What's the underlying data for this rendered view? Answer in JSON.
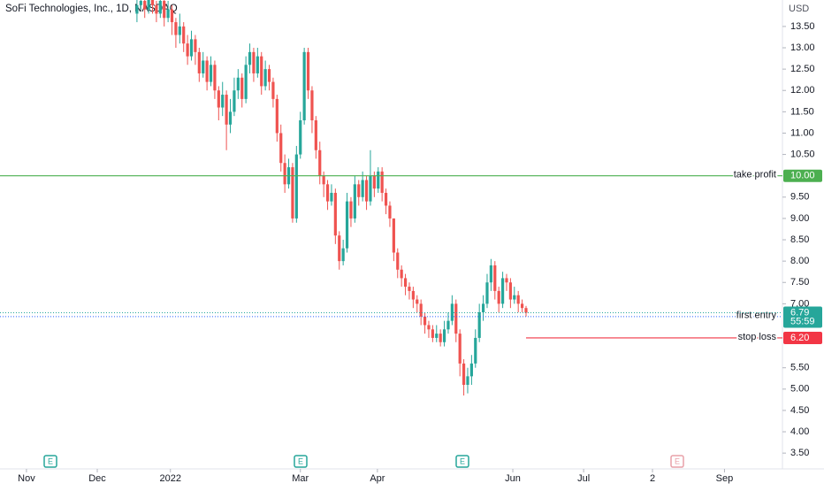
{
  "chart_data": {
    "type": "candlestick",
    "title": "SoFi Technologies, Inc., 1D, NASDAQ",
    "currency": "USD",
    "up_color": "#26a69a",
    "down_color": "#ef5350",
    "candles": [
      [
        13.8,
        14.2,
        13.6,
        14.0
      ],
      [
        14.0,
        14.3,
        13.9,
        14.1
      ],
      [
        14.1,
        14.2,
        13.7,
        13.9
      ],
      [
        13.9,
        14.4,
        13.8,
        14.2
      ],
      [
        14.2,
        14.3,
        13.8,
        14.0
      ],
      [
        14.0,
        14.1,
        13.6,
        13.8
      ],
      [
        13.8,
        14.3,
        13.7,
        14.1
      ],
      [
        14.1,
        14.2,
        13.5,
        13.7
      ],
      [
        13.7,
        14.1,
        13.6,
        13.9
      ],
      [
        13.9,
        14.0,
        13.3,
        13.6
      ],
      [
        13.6,
        13.7,
        13.0,
        13.3
      ],
      [
        13.3,
        13.8,
        13.1,
        13.5
      ],
      [
        13.5,
        13.6,
        12.9,
        13.1
      ],
      [
        13.1,
        13.3,
        12.6,
        12.8
      ],
      [
        12.8,
        13.4,
        12.7,
        13.2
      ],
      [
        13.2,
        13.3,
        12.6,
        12.9
      ],
      [
        12.9,
        13.0,
        12.2,
        12.4
      ],
      [
        12.4,
        12.9,
        12.3,
        12.7
      ],
      [
        12.7,
        12.8,
        12.0,
        12.2
      ],
      [
        12.2,
        12.8,
        12.1,
        12.6
      ],
      [
        12.6,
        12.7,
        11.8,
        12.0
      ],
      [
        12.0,
        12.1,
        11.3,
        11.6
      ],
      [
        11.6,
        12.2,
        11.4,
        11.9
      ],
      [
        11.9,
        12.0,
        10.6,
        11.2
      ],
      [
        11.2,
        11.8,
        11.0,
        11.5
      ],
      [
        11.5,
        12.3,
        11.4,
        12.0
      ],
      [
        12.0,
        12.5,
        11.8,
        12.3
      ],
      [
        12.3,
        12.4,
        11.6,
        11.8
      ],
      [
        11.8,
        12.8,
        11.7,
        12.6
      ],
      [
        12.6,
        13.1,
        12.4,
        12.9
      ],
      [
        12.9,
        13.0,
        12.2,
        12.4
      ],
      [
        12.4,
        13.0,
        12.3,
        12.8
      ],
      [
        12.8,
        12.9,
        11.9,
        12.1
      ],
      [
        12.1,
        12.7,
        12.0,
        12.5
      ],
      [
        12.5,
        12.6,
        12.0,
        12.2
      ],
      [
        12.2,
        12.3,
        11.6,
        11.8
      ],
      [
        11.8,
        11.9,
        10.8,
        11.0
      ],
      [
        11.0,
        11.2,
        10.1,
        10.3
      ],
      [
        10.3,
        10.5,
        9.6,
        9.8
      ],
      [
        9.8,
        10.4,
        9.7,
        10.2
      ],
      [
        10.2,
        10.3,
        8.9,
        9.0
      ],
      [
        9.0,
        10.7,
        8.9,
        10.5
      ],
      [
        10.5,
        11.5,
        10.4,
        11.3
      ],
      [
        11.3,
        13.0,
        11.2,
        12.9
      ],
      [
        12.9,
        13.0,
        11.8,
        12.0
      ],
      [
        12.0,
        12.1,
        11.0,
        11.3
      ],
      [
        11.3,
        11.4,
        10.4,
        10.6
      ],
      [
        10.6,
        10.8,
        9.8,
        10.0
      ],
      [
        10.0,
        10.1,
        9.5,
        9.8
      ],
      [
        9.8,
        9.9,
        9.2,
        9.4
      ],
      [
        9.4,
        9.8,
        9.3,
        9.6
      ],
      [
        9.6,
        9.7,
        8.4,
        8.6
      ],
      [
        8.6,
        8.7,
        7.8,
        8.0
      ],
      [
        8.0,
        8.5,
        7.9,
        8.3
      ],
      [
        8.3,
        9.6,
        8.2,
        9.4
      ],
      [
        9.4,
        9.5,
        8.8,
        9.0
      ],
      [
        9.0,
        10.0,
        8.9,
        9.8
      ],
      [
        9.8,
        9.9,
        9.3,
        9.5
      ],
      [
        9.5,
        10.1,
        9.4,
        9.9
      ],
      [
        9.9,
        10.0,
        9.2,
        9.4
      ],
      [
        9.4,
        10.6,
        9.3,
        10.0
      ],
      [
        10.0,
        10.1,
        9.5,
        9.7
      ],
      [
        9.7,
        10.2,
        9.6,
        10.1
      ],
      [
        10.1,
        10.2,
        9.4,
        9.6
      ],
      [
        9.6,
        9.7,
        9.1,
        9.3
      ],
      [
        9.3,
        9.4,
        8.8,
        9.0
      ],
      [
        9.0,
        9.0,
        8.0,
        8.2
      ],
      [
        8.2,
        8.3,
        7.6,
        7.8
      ],
      [
        7.8,
        7.9,
        7.4,
        7.6
      ],
      [
        7.6,
        7.7,
        7.2,
        7.4
      ],
      [
        7.4,
        7.5,
        7.1,
        7.3
      ],
      [
        7.3,
        7.4,
        6.9,
        7.1
      ],
      [
        7.1,
        7.2,
        6.8,
        7.0
      ],
      [
        7.0,
        7.1,
        6.5,
        6.7
      ],
      [
        6.7,
        6.8,
        6.3,
        6.5
      ],
      [
        6.5,
        6.6,
        6.2,
        6.4
      ],
      [
        6.4,
        6.5,
        6.1,
        6.2
      ],
      [
        6.2,
        6.5,
        6.1,
        6.3
      ],
      [
        6.3,
        6.4,
        6.0,
        6.1
      ],
      [
        6.1,
        6.6,
        6.0,
        6.4
      ],
      [
        6.4,
        6.8,
        6.3,
        6.6
      ],
      [
        6.6,
        7.2,
        6.5,
        7.0
      ],
      [
        7.0,
        7.1,
        6.1,
        6.3
      ],
      [
        6.3,
        6.4,
        5.3,
        5.6
      ],
      [
        5.6,
        5.7,
        4.85,
        5.1
      ],
      [
        5.1,
        5.5,
        4.9,
        5.3
      ],
      [
        5.3,
        5.8,
        5.1,
        5.6
      ],
      [
        5.6,
        6.4,
        5.5,
        6.2
      ],
      [
        6.2,
        7.0,
        6.1,
        6.8
      ],
      [
        6.8,
        7.2,
        6.6,
        7.0
      ],
      [
        7.0,
        7.7,
        6.9,
        7.5
      ],
      [
        7.5,
        8.05,
        7.3,
        7.9
      ],
      [
        7.9,
        8.0,
        7.1,
        7.3
      ],
      [
        7.3,
        7.4,
        6.8,
        7.0
      ],
      [
        7.0,
        7.75,
        6.9,
        7.6
      ],
      [
        7.6,
        7.7,
        7.3,
        7.5
      ],
      [
        7.5,
        7.6,
        6.9,
        7.1
      ],
      [
        7.1,
        7.4,
        7.0,
        7.2
      ],
      [
        7.2,
        7.3,
        6.8,
        7.0
      ],
      [
        7.0,
        7.1,
        6.8,
        6.9
      ],
      [
        6.9,
        6.95,
        6.7,
        6.79
      ]
    ],
    "ylim": [
      3.13,
      14.12
    ],
    "yticks": [
      {
        "value": 13.5,
        "label": "13.50"
      },
      {
        "value": 13,
        "label": "13.00"
      },
      {
        "value": 12.5,
        "label": "12.50"
      },
      {
        "value": 12,
        "label": "12.00"
      },
      {
        "value": 11.5,
        "label": "11.50"
      },
      {
        "value": 11,
        "label": "11.00"
      },
      {
        "value": 10.5,
        "label": "10.50"
      },
      {
        "value": 9.5,
        "label": "9.50"
      },
      {
        "value": 9,
        "label": "9.00"
      },
      {
        "value": 8.5,
        "label": "8.50"
      },
      {
        "value": 8,
        "label": "8.00"
      },
      {
        "value": 7.5,
        "label": "7.50"
      },
      {
        "value": 7,
        "label": "7.00"
      },
      {
        "value": 5.5,
        "label": "5.50"
      },
      {
        "value": 5,
        "label": "5.00"
      },
      {
        "value": 4.5,
        "label": "4.50"
      },
      {
        "value": 4,
        "label": "4.00"
      },
      {
        "value": 3.5,
        "label": "3.50"
      }
    ],
    "xlim": [
      -35.2,
      165.9
    ],
    "xticks": [
      {
        "value": -28.4,
        "label": "Nov"
      },
      {
        "value": -10.2,
        "label": "Dec"
      },
      {
        "value": 8.6,
        "label": "2022"
      },
      {
        "value": 42,
        "label": "Mar"
      },
      {
        "value": 61.8,
        "label": "Apr"
      },
      {
        "value": 96.6,
        "label": "Jun"
      },
      {
        "value": 114.8,
        "label": "Jul"
      },
      {
        "value": 132.5,
        "label": "2"
      },
      {
        "value": 151,
        "label": "Sep"
      }
    ],
    "levels": [
      {
        "text": "take profit",
        "value": 10,
        "value_label": "10.00",
        "color": "#4caf50",
        "style": "solid",
        "full": true
      },
      {
        "text": "first entry",
        "value": 6.7,
        "value_label": "6.70",
        "color": "#2962ff",
        "style": "dotted",
        "full": true
      },
      {
        "text": "stop loss",
        "value": 6.2,
        "value_label": "6.20",
        "color": "#f23645",
        "style": "solid",
        "full": false
      }
    ],
    "last_price": {
      "value": 6.79,
      "label": "6.79",
      "countdown": "55:59",
      "color": "#26a69a"
    },
    "earnings_markers": [
      "E",
      "E",
      "E",
      "E"
    ]
  }
}
